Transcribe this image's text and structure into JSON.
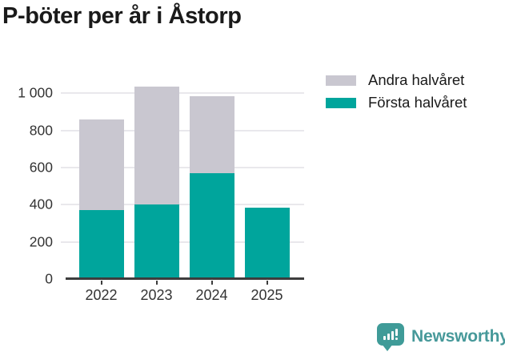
{
  "chart_data": {
    "type": "bar",
    "stacked": true,
    "title": "P-böter per år i Åstorp",
    "categories": [
      "2022",
      "2023",
      "2024",
      "2025"
    ],
    "series": [
      {
        "name": "Första halvåret",
        "color": "#00a59c",
        "values": [
          365,
          395,
          565,
          380
        ]
      },
      {
        "name": "Andra halvåret",
        "color": "#c9c7d0",
        "values": [
          490,
          635,
          415,
          0
        ]
      }
    ],
    "xlabel": "",
    "ylabel": "",
    "yticks": [
      0,
      200,
      400,
      600,
      800,
      1000
    ],
    "ytick_labels": [
      "0",
      "200",
      "400",
      "600",
      "800",
      "1 000"
    ],
    "ylim": [
      0,
      1070
    ],
    "grid": "horizontal",
    "legend_position": "top-right"
  },
  "legend": {
    "items": [
      {
        "label": "Andra halvåret",
        "color": "#c9c7d0"
      },
      {
        "label": "Första halvåret",
        "color": "#00a59c"
      }
    ]
  },
  "branding": {
    "name": "Newsworthy",
    "color": "#47999a"
  }
}
